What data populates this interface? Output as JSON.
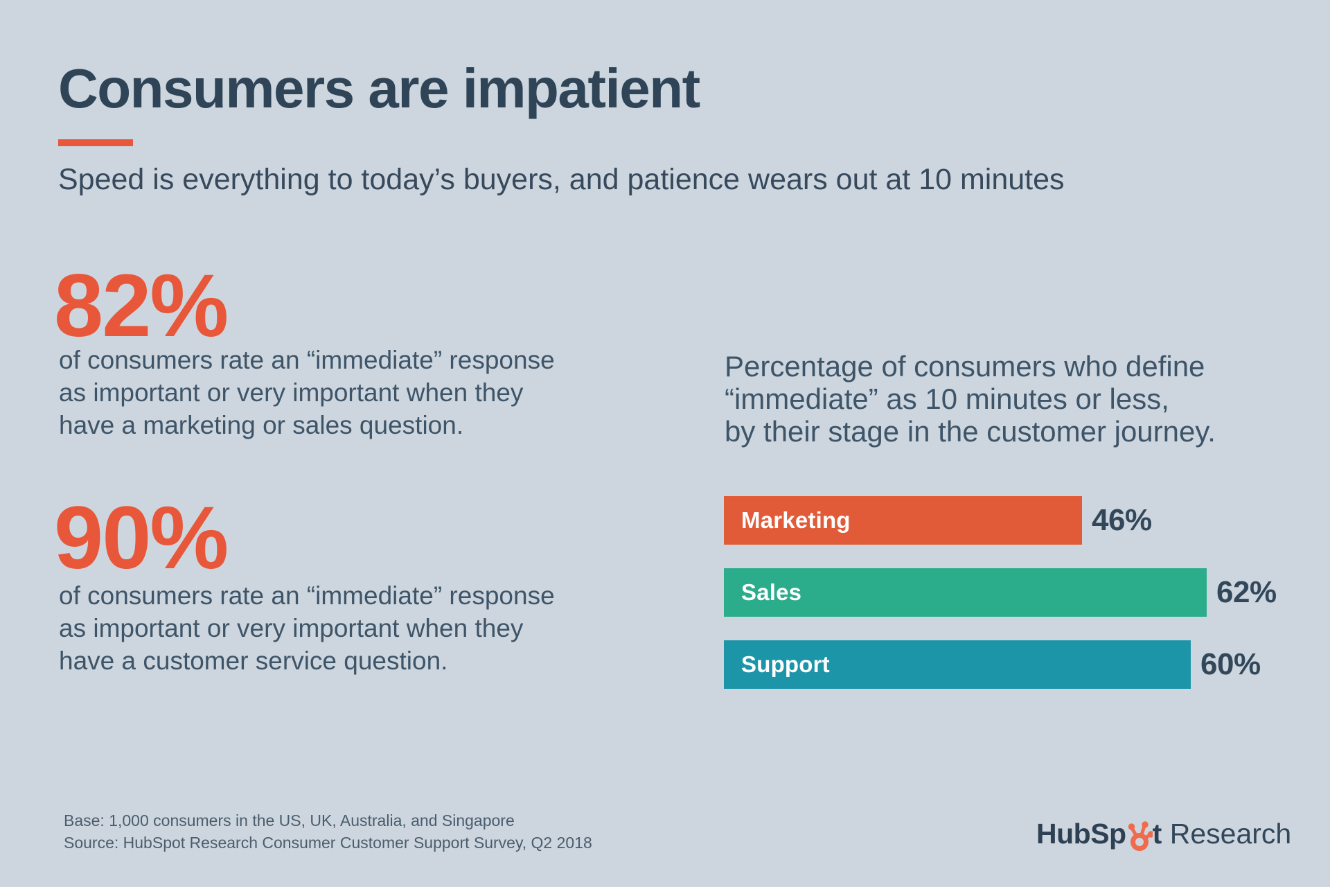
{
  "header": {
    "title": "Consumers are impatient",
    "subtitle": "Speed is everything to today’s buyers, and patience wears out at 10 minutes"
  },
  "stats": [
    {
      "value": "82%",
      "lines": [
        "of consumers rate an “immediate” response",
        "as important or very important when they",
        "have a marketing or sales question."
      ]
    },
    {
      "value": "90%",
      "lines": [
        "of consumers rate an “immediate” response",
        "as important or very important when they",
        "have a customer service question."
      ]
    }
  ],
  "chart_data": {
    "type": "bar",
    "orientation": "horizontal",
    "title": "Percentage of consumers who define “immediate” as 10 minutes or less, by their stage in the customer journey.",
    "caption_lines": [
      "Percentage of consumers who define",
      "“immediate” as 10 minutes or less,",
      "by their stage in the customer journey."
    ],
    "categories": [
      "Marketing",
      "Sales",
      "Support"
    ],
    "values": [
      46,
      62,
      60
    ],
    "value_labels": [
      "46%",
      "62%",
      "60%"
    ],
    "colors": [
      "#e25b38",
      "#2bac8b",
      "#1d95a9"
    ],
    "xlim": [
      0,
      100
    ],
    "gridlines": false,
    "legend": false
  },
  "footer": {
    "base": "Base: 1,000 consumers in the US, UK, Australia, and Singapore",
    "source": "Source: HubSpot Research Consumer Customer Support Survey, Q2 2018"
  },
  "logo": {
    "prefix": "HubSp",
    "suffix": "t",
    "research": "Research"
  },
  "colors": {
    "background": "#cdd6de",
    "title_navy": "#2f4457",
    "body_text": "#3e5468",
    "accent_orange": "#e8573a",
    "bar_value_navy": "#33475b",
    "bar_label_white": "#ffffff",
    "sprocket_orange": "#ef6b4c"
  }
}
